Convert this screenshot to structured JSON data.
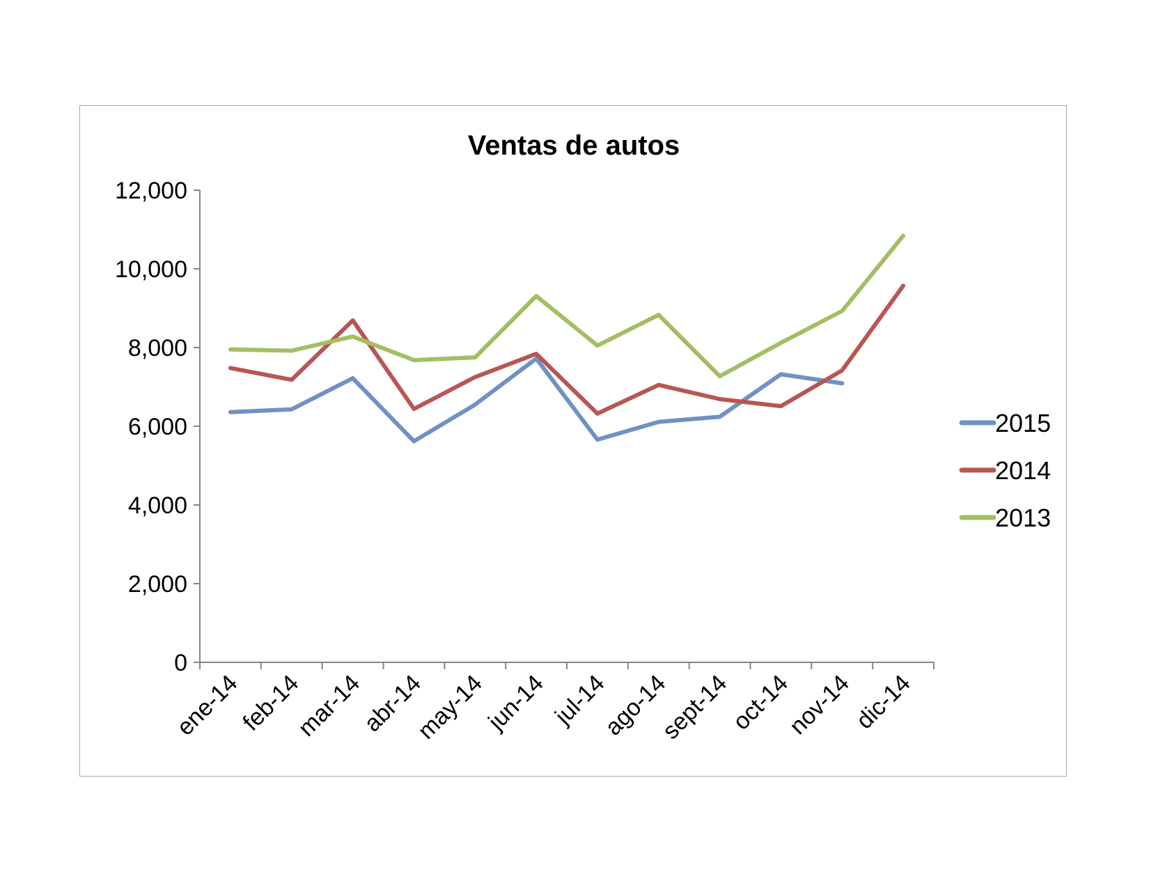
{
  "chart_data": {
    "type": "line",
    "title": "Ventas de autos",
    "xlabel": "",
    "ylabel": "",
    "categories": [
      "ene-14",
      "feb-14",
      "mar-14",
      "abr-14",
      "may-14",
      "jun-14",
      "jul-14",
      "ago-14",
      "sept-14",
      "oct-14",
      "nov-14",
      "dic-14"
    ],
    "ylim": [
      0,
      12000
    ],
    "yticks": [
      0,
      2000,
      4000,
      6000,
      8000,
      10000,
      12000
    ],
    "ytick_labels": [
      "0",
      "2,000",
      "4,000",
      "6,000",
      "8,000",
      "10,000",
      "12,000"
    ],
    "grid": false,
    "legend_position": "right",
    "series": [
      {
        "name": "2015",
        "color": "#6f92c4",
        "values": [
          6360,
          6430,
          7220,
          5620,
          6550,
          7720,
          5660,
          6110,
          6240,
          7320,
          7090,
          null
        ]
      },
      {
        "name": "2014",
        "color": "#b85653",
        "values": [
          7480,
          7180,
          8690,
          6440,
          7250,
          7840,
          6320,
          7050,
          6690,
          6510,
          7420,
          9570
        ]
      },
      {
        "name": "2013",
        "color": "#a3bf62",
        "values": [
          7950,
          7920,
          8280,
          7680,
          7750,
          9310,
          8050,
          8830,
          7270,
          8120,
          8930,
          10840
        ]
      }
    ]
  }
}
